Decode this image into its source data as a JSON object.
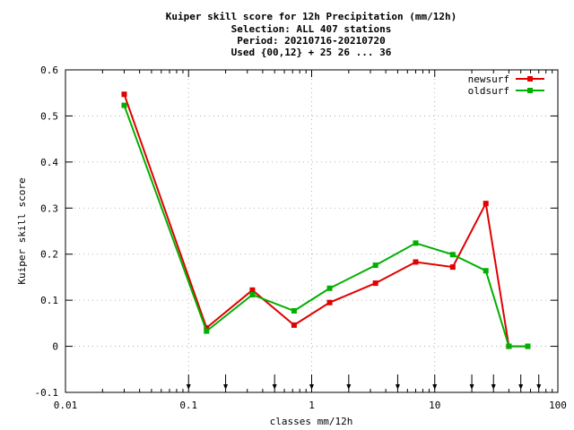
{
  "chart_data": {
    "type": "line",
    "title_lines": [
      "Kuiper skill score  for 12h Precipitation (mm/12h)",
      "Selection: ALL    407 stations",
      "Period: 20210716-20210720",
      "Used {00,12} + 25 26 ... 36"
    ],
    "xlabel": "classes mm/12h",
    "ylabel": "Kuiper skill score",
    "x_scale": "log",
    "xlim": [
      0.01,
      100
    ],
    "ylim": [
      -0.1,
      0.6
    ],
    "x_ticks": [
      0.01,
      0.1,
      1,
      10,
      100
    ],
    "x_tick_labels": [
      "0.01",
      "0.1",
      "1",
      "10",
      "100"
    ],
    "y_ticks": [
      -0.1,
      0,
      0.1,
      0.2,
      0.3,
      0.4,
      0.5,
      0.6
    ],
    "y_tick_labels": [
      "-0.1",
      "0",
      "0.1",
      "0.2",
      "0.3",
      "0.4",
      "0.5",
      "0.6"
    ],
    "grid": true,
    "legend_position": "top-right",
    "class_markers": [
      0.1,
      0.2,
      0.5,
      1,
      2,
      5,
      10,
      20,
      30,
      50,
      70
    ],
    "series": [
      {
        "name": "newsurf",
        "color": "#e00000",
        "x": [
          0.03,
          0.14,
          0.33,
          0.72,
          1.4,
          3.3,
          7,
          14,
          26,
          40,
          57
        ],
        "y": [
          0.547,
          0.04,
          0.122,
          0.046,
          0.095,
          0.137,
          0.183,
          0.172,
          0.31,
          0.0,
          0.0
        ]
      },
      {
        "name": "oldsurf",
        "color": "#00b000",
        "x": [
          0.03,
          0.14,
          0.33,
          0.72,
          1.4,
          3.3,
          7,
          14,
          26,
          40,
          57
        ],
        "y": [
          0.523,
          0.033,
          0.112,
          0.077,
          0.126,
          0.176,
          0.224,
          0.199,
          0.164,
          0.0,
          0.0
        ]
      }
    ]
  }
}
